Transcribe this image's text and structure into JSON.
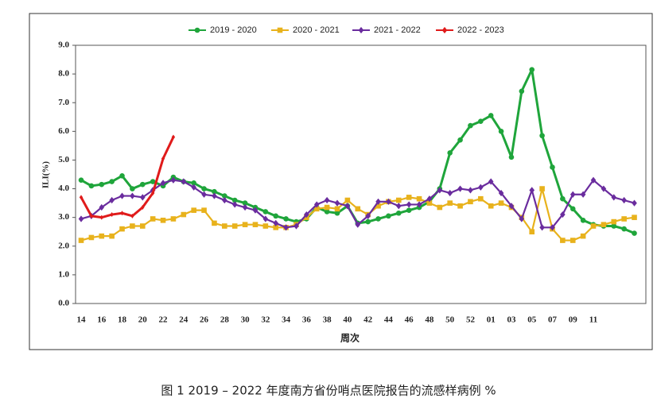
{
  "chart_data": {
    "type": "line",
    "caption": "图 1 2019 – 2022 年度南方省份哨点医院报告的流感样病例 %",
    "y_label": "ILI(%)",
    "x_label": "周次",
    "categories": [
      "14",
      null,
      "16",
      null,
      "18",
      null,
      "20",
      null,
      "22",
      null,
      "24",
      null,
      "26",
      null,
      "28",
      null,
      "30",
      null,
      "32",
      null,
      "34",
      null,
      "36",
      null,
      "38",
      null,
      "40",
      null,
      "42",
      null,
      "44",
      null,
      "46",
      null,
      "48",
      null,
      "50",
      null,
      "52",
      null,
      "01",
      null,
      "03",
      null,
      "05",
      null,
      "07",
      null,
      "09",
      null,
      "11",
      null,
      null,
      null,
      null
    ],
    "ylim": [
      0,
      9
    ],
    "yticks": [
      {
        "value": 0,
        "label": "0.0"
      },
      {
        "value": 1,
        "label": "1.0"
      },
      {
        "value": 2,
        "label": "2.0"
      },
      {
        "value": 3,
        "label": "3.0"
      },
      {
        "value": 4,
        "label": "4.0"
      },
      {
        "value": 5,
        "label": "5.0"
      },
      {
        "value": 6,
        "label": "6.0"
      },
      {
        "value": 7,
        "label": "7.0"
      },
      {
        "value": 8,
        "label": "8.0"
      },
      {
        "value": 9,
        "label": "9.0"
      }
    ],
    "legend": "top",
    "series": [
      {
        "name": "2019 - 2020",
        "color": "#1fa53b",
        "marker": "circle",
        "values": [
          4.3,
          4.1,
          4.15,
          4.25,
          4.45,
          4.0,
          4.15,
          4.25,
          4.1,
          4.4,
          4.25,
          4.2,
          4.0,
          3.9,
          3.75,
          3.6,
          3.5,
          3.35,
          3.2,
          3.05,
          2.95,
          2.85,
          2.95,
          3.35,
          3.2,
          3.15,
          3.4,
          2.8,
          2.85,
          2.95,
          3.05,
          3.15,
          3.25,
          3.35,
          3.55,
          4.0,
          5.25,
          5.7,
          6.2,
          6.35,
          6.55,
          6.0,
          5.1,
          7.4,
          8.15,
          5.85,
          4.75,
          3.65,
          3.3,
          2.9,
          2.75,
          2.7,
          2.7,
          2.6,
          2.45
        ]
      },
      {
        "name": "2020 - 2021",
        "color": "#e8b21c",
        "marker": "square",
        "values": [
          2.2,
          2.3,
          2.35,
          2.35,
          2.6,
          2.7,
          2.7,
          2.95,
          2.9,
          2.95,
          3.1,
          3.25,
          3.25,
          2.8,
          2.7,
          2.7,
          2.75,
          2.75,
          2.7,
          2.65,
          2.65,
          2.75,
          3.0,
          3.3,
          3.35,
          3.3,
          3.6,
          3.3,
          3.1,
          3.4,
          3.55,
          3.6,
          3.7,
          3.65,
          3.5,
          3.35,
          3.5,
          3.4,
          3.55,
          3.65,
          3.4,
          3.5,
          3.35,
          3.0,
          2.5,
          4.0,
          2.6,
          2.2,
          2.2,
          2.35,
          2.7,
          2.75,
          2.85,
          2.95,
          3.0
        ]
      },
      {
        "name": "2021 - 2022",
        "color": "#6a2c9e",
        "marker": "diamond",
        "values": [
          2.95,
          3.05,
          3.35,
          3.6,
          3.75,
          3.75,
          3.7,
          3.95,
          4.2,
          4.3,
          4.25,
          4.05,
          3.8,
          3.75,
          3.6,
          3.45,
          3.35,
          3.25,
          2.95,
          2.8,
          2.65,
          2.7,
          3.1,
          3.45,
          3.6,
          3.5,
          3.4,
          2.75,
          3.05,
          3.55,
          3.55,
          3.4,
          3.45,
          3.45,
          3.65,
          3.95,
          3.85,
          4.0,
          3.95,
          4.05,
          4.25,
          3.85,
          3.4,
          2.95,
          3.95,
          2.65,
          2.65,
          3.1,
          3.8,
          3.8,
          4.3,
          4.0,
          3.7,
          3.6,
          3.5
        ]
      },
      {
        "name": "2022 - 2023",
        "color": "#e01b1b",
        "marker": "diamond",
        "values": [
          3.7,
          3.05,
          3.0,
          3.1,
          3.15,
          3.05,
          3.35,
          3.85,
          5.05,
          5.8,
          null,
          null,
          null,
          null,
          null,
          null,
          null,
          null,
          null,
          null,
          null,
          null,
          null,
          null,
          null,
          null,
          null,
          null,
          null,
          null,
          null,
          null,
          null,
          null,
          null,
          null,
          null,
          null,
          null,
          null,
          null,
          null,
          null,
          null,
          null,
          null,
          null,
          null,
          null,
          null,
          null,
          null,
          null,
          null,
          null
        ]
      }
    ]
  }
}
